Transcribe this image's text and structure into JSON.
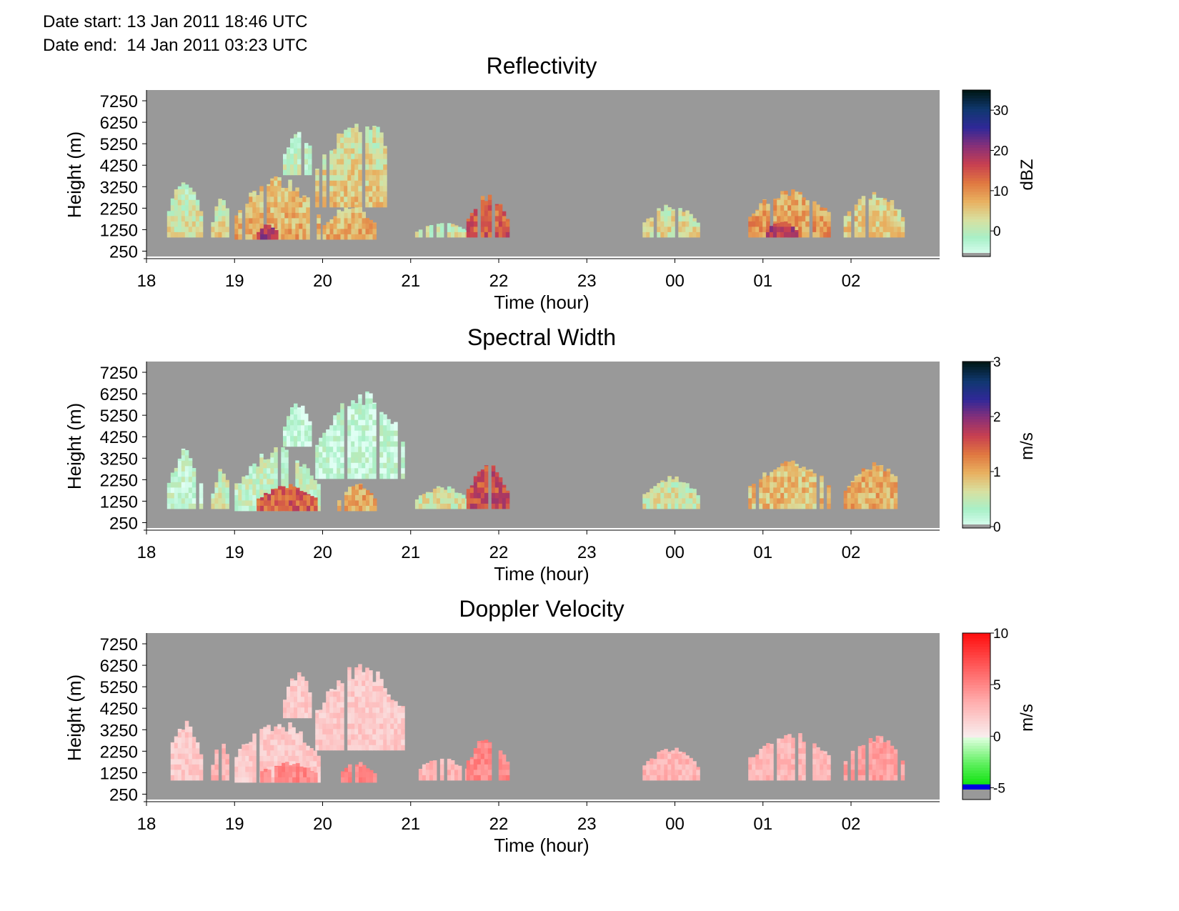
{
  "header": {
    "date_start_label": "Date start:",
    "date_start_value": "13 Jan 2011 18:46 UTC",
    "date_end_label": "Date end:",
    "date_end_value": "14 Jan 2011 03:23 UTC"
  },
  "colors": {
    "panel_background": "#999999",
    "reflectivity_scale": [
      "#e0fff4",
      "#a8f0c8",
      "#d8e0a0",
      "#e8b060",
      "#e07840",
      "#c84050",
      "#883078",
      "#302898",
      "#103870",
      "#001818"
    ],
    "width_scale": [
      "#e0fff4",
      "#a8f0c8",
      "#d8e0a0",
      "#e8b060",
      "#e07840",
      "#c84050",
      "#883078",
      "#302898",
      "#103870",
      "#001818"
    ],
    "velocity_scale_positive": [
      "#f8f0f0",
      "#ffb0b0",
      "#ff6060",
      "#ff1010"
    ],
    "velocity_scale_negative": [
      "#e0ffe0",
      "#60f060",
      "#00e000"
    ],
    "velocity_low_band": "#0000e0"
  },
  "chart_data": [
    {
      "type": "heatmap",
      "title": "Reflectivity",
      "xlabel": "Time (hour)",
      "ylabel": "Height (m)",
      "x_ticks": [
        "18",
        "19",
        "20",
        "21",
        "22",
        "23",
        "00",
        "01",
        "02"
      ],
      "y_ticks": [
        "7250",
        "6250",
        "5250",
        "4250",
        "3250",
        "2250",
        "1250",
        "250"
      ],
      "ylim": [
        0,
        7750
      ],
      "colorbar": {
        "label": "dBZ",
        "ticks": [
          "30",
          "20",
          "10",
          "0"
        ],
        "range": [
          -6,
          35
        ]
      },
      "echoes": [
        {
          "start": "18:14",
          "end": "18:36",
          "top": 3800,
          "base": 900,
          "value": 3
        },
        {
          "start": "18:44",
          "end": "18:56",
          "top": 2800,
          "base": 900,
          "value": 4
        },
        {
          "start": "19:00",
          "end": "19:56",
          "top": 3800,
          "base": 800,
          "value": 8
        },
        {
          "start": "19:15",
          "end": "19:28",
          "top": 1600,
          "base": 800,
          "value": 20
        },
        {
          "start": "19:33",
          "end": "19:52",
          "top": 6000,
          "base": 3800,
          "value": 0
        },
        {
          "start": "19:55",
          "end": "20:55",
          "top": 6500,
          "base": 2300,
          "value": 6
        },
        {
          "start": "20:00",
          "end": "20:35",
          "top": 2500,
          "base": 800,
          "value": 8
        },
        {
          "start": "21:03",
          "end": "21:38",
          "top": 1600,
          "base": 900,
          "value": 2
        },
        {
          "start": "21:38",
          "end": "22:05",
          "top": 3000,
          "base": 900,
          "value": 15
        },
        {
          "start": "23:38",
          "end": "00:15",
          "top": 2500,
          "base": 900,
          "value": 4
        },
        {
          "start": "00:50",
          "end": "01:45",
          "top": 3300,
          "base": 900,
          "value": 10
        },
        {
          "start": "01:02",
          "end": "01:22",
          "top": 1700,
          "base": 900,
          "value": 18
        },
        {
          "start": "01:55",
          "end": "02:35",
          "top": 3100,
          "base": 900,
          "value": 6
        }
      ]
    },
    {
      "type": "heatmap",
      "title": "Spectral Width",
      "xlabel": "Time (hour)",
      "ylabel": "Height (m)",
      "x_ticks": [
        "18",
        "19",
        "20",
        "21",
        "22",
        "23",
        "00",
        "01",
        "02"
      ],
      "y_ticks": [
        "7250",
        "6250",
        "5250",
        "4250",
        "3250",
        "2250",
        "1250",
        "250"
      ],
      "ylim": [
        0,
        7750
      ],
      "colorbar": {
        "label": "m/s",
        "ticks": [
          "3",
          "2",
          "1",
          "0"
        ],
        "range": [
          0,
          3
        ]
      },
      "echoes": [
        {
          "start": "18:14",
          "end": "18:36",
          "top": 3800,
          "base": 900,
          "value": 0.3
        },
        {
          "start": "18:44",
          "end": "18:56",
          "top": 2800,
          "base": 900,
          "value": 0.5
        },
        {
          "start": "19:00",
          "end": "19:56",
          "top": 3800,
          "base": 800,
          "value": 0.4
        },
        {
          "start": "19:15",
          "end": "19:56",
          "top": 2100,
          "base": 800,
          "value": 1.5
        },
        {
          "start": "19:33",
          "end": "19:52",
          "top": 6000,
          "base": 3800,
          "value": 0.2
        },
        {
          "start": "19:55",
          "end": "20:55",
          "top": 6500,
          "base": 2300,
          "value": 0.2
        },
        {
          "start": "20:10",
          "end": "20:35",
          "top": 2100,
          "base": 800,
          "value": 1.0
        },
        {
          "start": "21:03",
          "end": "21:38",
          "top": 2000,
          "base": 900,
          "value": 0.6
        },
        {
          "start": "21:38",
          "end": "22:05",
          "top": 3100,
          "base": 900,
          "value": 1.6
        },
        {
          "start": "23:38",
          "end": "00:15",
          "top": 2500,
          "base": 900,
          "value": 0.6
        },
        {
          "start": "00:50",
          "end": "01:45",
          "top": 3300,
          "base": 900,
          "value": 0.9
        },
        {
          "start": "01:55",
          "end": "02:35",
          "top": 3100,
          "base": 900,
          "value": 1.0
        }
      ]
    },
    {
      "type": "heatmap",
      "title": "Doppler Velocity",
      "xlabel": "Time (hour)",
      "ylabel": "Height (m)",
      "x_ticks": [
        "18",
        "19",
        "20",
        "21",
        "22",
        "23",
        "00",
        "01",
        "02"
      ],
      "y_ticks": [
        "7250",
        "6250",
        "5250",
        "4250",
        "3250",
        "2250",
        "1250",
        "250"
      ],
      "ylim": [
        0,
        7750
      ],
      "colorbar": {
        "label": "m/s",
        "ticks": [
          "10",
          "5",
          "0",
          "-5"
        ],
        "range": [
          -6,
          10
        ]
      },
      "echoes": [
        {
          "start": "18:14",
          "end": "18:36",
          "top": 3800,
          "base": 900,
          "value": 2
        },
        {
          "start": "18:44",
          "end": "18:56",
          "top": 2800,
          "base": 900,
          "value": 3
        },
        {
          "start": "19:00",
          "end": "19:56",
          "top": 3800,
          "base": 800,
          "value": 2
        },
        {
          "start": "19:15",
          "end": "19:56",
          "top": 1800,
          "base": 800,
          "value": 5
        },
        {
          "start": "19:33",
          "end": "19:52",
          "top": 6000,
          "base": 3800,
          "value": 2
        },
        {
          "start": "19:55",
          "end": "20:55",
          "top": 6500,
          "base": 2300,
          "value": 2
        },
        {
          "start": "20:10",
          "end": "20:35",
          "top": 1800,
          "base": 800,
          "value": 5
        },
        {
          "start": "21:03",
          "end": "21:38",
          "top": 2000,
          "base": 900,
          "value": 3
        },
        {
          "start": "21:38",
          "end": "22:05",
          "top": 3100,
          "base": 900,
          "value": 5
        },
        {
          "start": "23:38",
          "end": "00:15",
          "top": 2500,
          "base": 900,
          "value": 3
        },
        {
          "start": "00:50",
          "end": "01:45",
          "top": 3300,
          "base": 900,
          "value": 3
        },
        {
          "start": "01:55",
          "end": "02:35",
          "top": 3100,
          "base": 900,
          "value": 4
        }
      ]
    }
  ]
}
